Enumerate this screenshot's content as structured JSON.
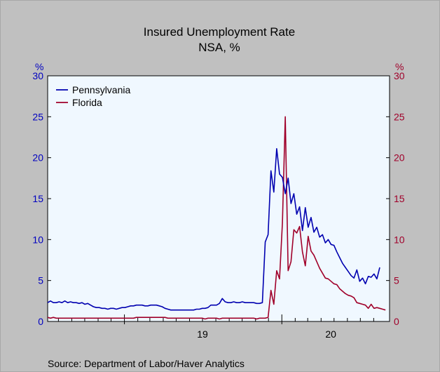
{
  "chart_data": {
    "type": "line",
    "title": "Insured Unemployment Rate",
    "subtitle": "NSA, %",
    "left_axis_unit": "%",
    "right_axis_unit": "%",
    "ylim": [
      0,
      30
    ],
    "yticks": [
      "0",
      "5",
      "10",
      "15",
      "20",
      "25",
      "30"
    ],
    "x_tick_labels": [
      "19",
      "20"
    ],
    "x_start": "2018-07-07",
    "x_end": "2020-08-15",
    "grid": false,
    "legend_position": "top-left",
    "source": "Source:  Department of Labor/Haver Analytics",
    "colors": {
      "pennsylvania": "#0000b0",
      "florida": "#a0002a",
      "left_axis": "#0000c0",
      "right_axis": "#a0002a",
      "plot_bg": "#f0f8ff"
    },
    "series": [
      {
        "name": "Pennsylvania",
        "values": [
          2.3,
          2.5,
          2.3,
          2.3,
          2.4,
          2.3,
          2.5,
          2.3,
          2.4,
          2.3,
          2.3,
          2.2,
          2.3,
          2.1,
          2.2,
          2.0,
          1.8,
          1.7,
          1.7,
          1.6,
          1.6,
          1.5,
          1.6,
          1.6,
          1.5,
          1.6,
          1.7,
          1.7,
          1.8,
          1.9,
          1.9,
          2.0,
          2.0,
          2.0,
          1.9,
          1.9,
          2.0,
          2.0,
          2.0,
          1.9,
          1.8,
          1.6,
          1.5,
          1.4,
          1.4,
          1.4,
          1.4,
          1.4,
          1.4,
          1.4,
          1.4,
          1.4,
          1.5,
          1.5,
          1.6,
          1.6,
          1.7,
          2.0,
          2.0,
          2.0,
          2.2,
          2.8,
          2.4,
          2.3,
          2.3,
          2.4,
          2.3,
          2.3,
          2.4,
          2.3,
          2.3,
          2.3,
          2.3,
          2.2,
          2.2,
          2.3,
          9.7,
          10.6,
          18.4,
          15.8,
          21.1,
          18.0,
          17.6,
          15.6,
          17.5,
          14.4,
          15.6,
          13.1,
          14.0,
          11.1,
          13.9,
          11.5,
          12.7,
          10.9,
          11.5,
          10.3,
          10.6,
          9.6,
          10.0,
          9.4,
          9.3,
          8.5,
          7.8,
          7.1,
          6.6,
          6.1,
          5.6,
          5.3,
          6.3,
          4.9,
          5.3,
          4.6,
          5.5,
          5.4,
          5.8,
          5.2,
          6.6
        ]
      },
      {
        "name": "Florida",
        "values": [
          0.5,
          0.4,
          0.5,
          0.4,
          0.4,
          0.4,
          0.4,
          0.4,
          0.4,
          0.4,
          0.4,
          0.4,
          0.4,
          0.4,
          0.4,
          0.4,
          0.4,
          0.4,
          0.4,
          0.4,
          0.4,
          0.4,
          0.4,
          0.4,
          0.4,
          0.4,
          0.4,
          0.4,
          0.4,
          0.4,
          0.4,
          0.5,
          0.5,
          0.5,
          0.5,
          0.5,
          0.5,
          0.5,
          0.5,
          0.5,
          0.5,
          0.5,
          0.4,
          0.4,
          0.4,
          0.4,
          0.4,
          0.4,
          0.4,
          0.4,
          0.4,
          0.4,
          0.4,
          0.4,
          0.4,
          0.3,
          0.4,
          0.4,
          0.4,
          0.4,
          0.3,
          0.4,
          0.4,
          0.4,
          0.4,
          0.4,
          0.4,
          0.4,
          0.4,
          0.4,
          0.4,
          0.4,
          0.4,
          0.3,
          0.4,
          0.4,
          0.4,
          0.5,
          3.8,
          2.1,
          6.2,
          5.2,
          12.0,
          25.0,
          6.2,
          7.3,
          11.2,
          10.8,
          11.6,
          8.5,
          6.8,
          10.4,
          8.6,
          8.1,
          7.3,
          6.5,
          5.9,
          5.3,
          5.2,
          4.9,
          4.6,
          4.5,
          4.0,
          3.7,
          3.4,
          3.2,
          3.1,
          2.9,
          2.3,
          2.2,
          2.1,
          2.0,
          1.6,
          2.1,
          1.6,
          1.7,
          1.6,
          1.5,
          1.4
        ]
      }
    ]
  }
}
